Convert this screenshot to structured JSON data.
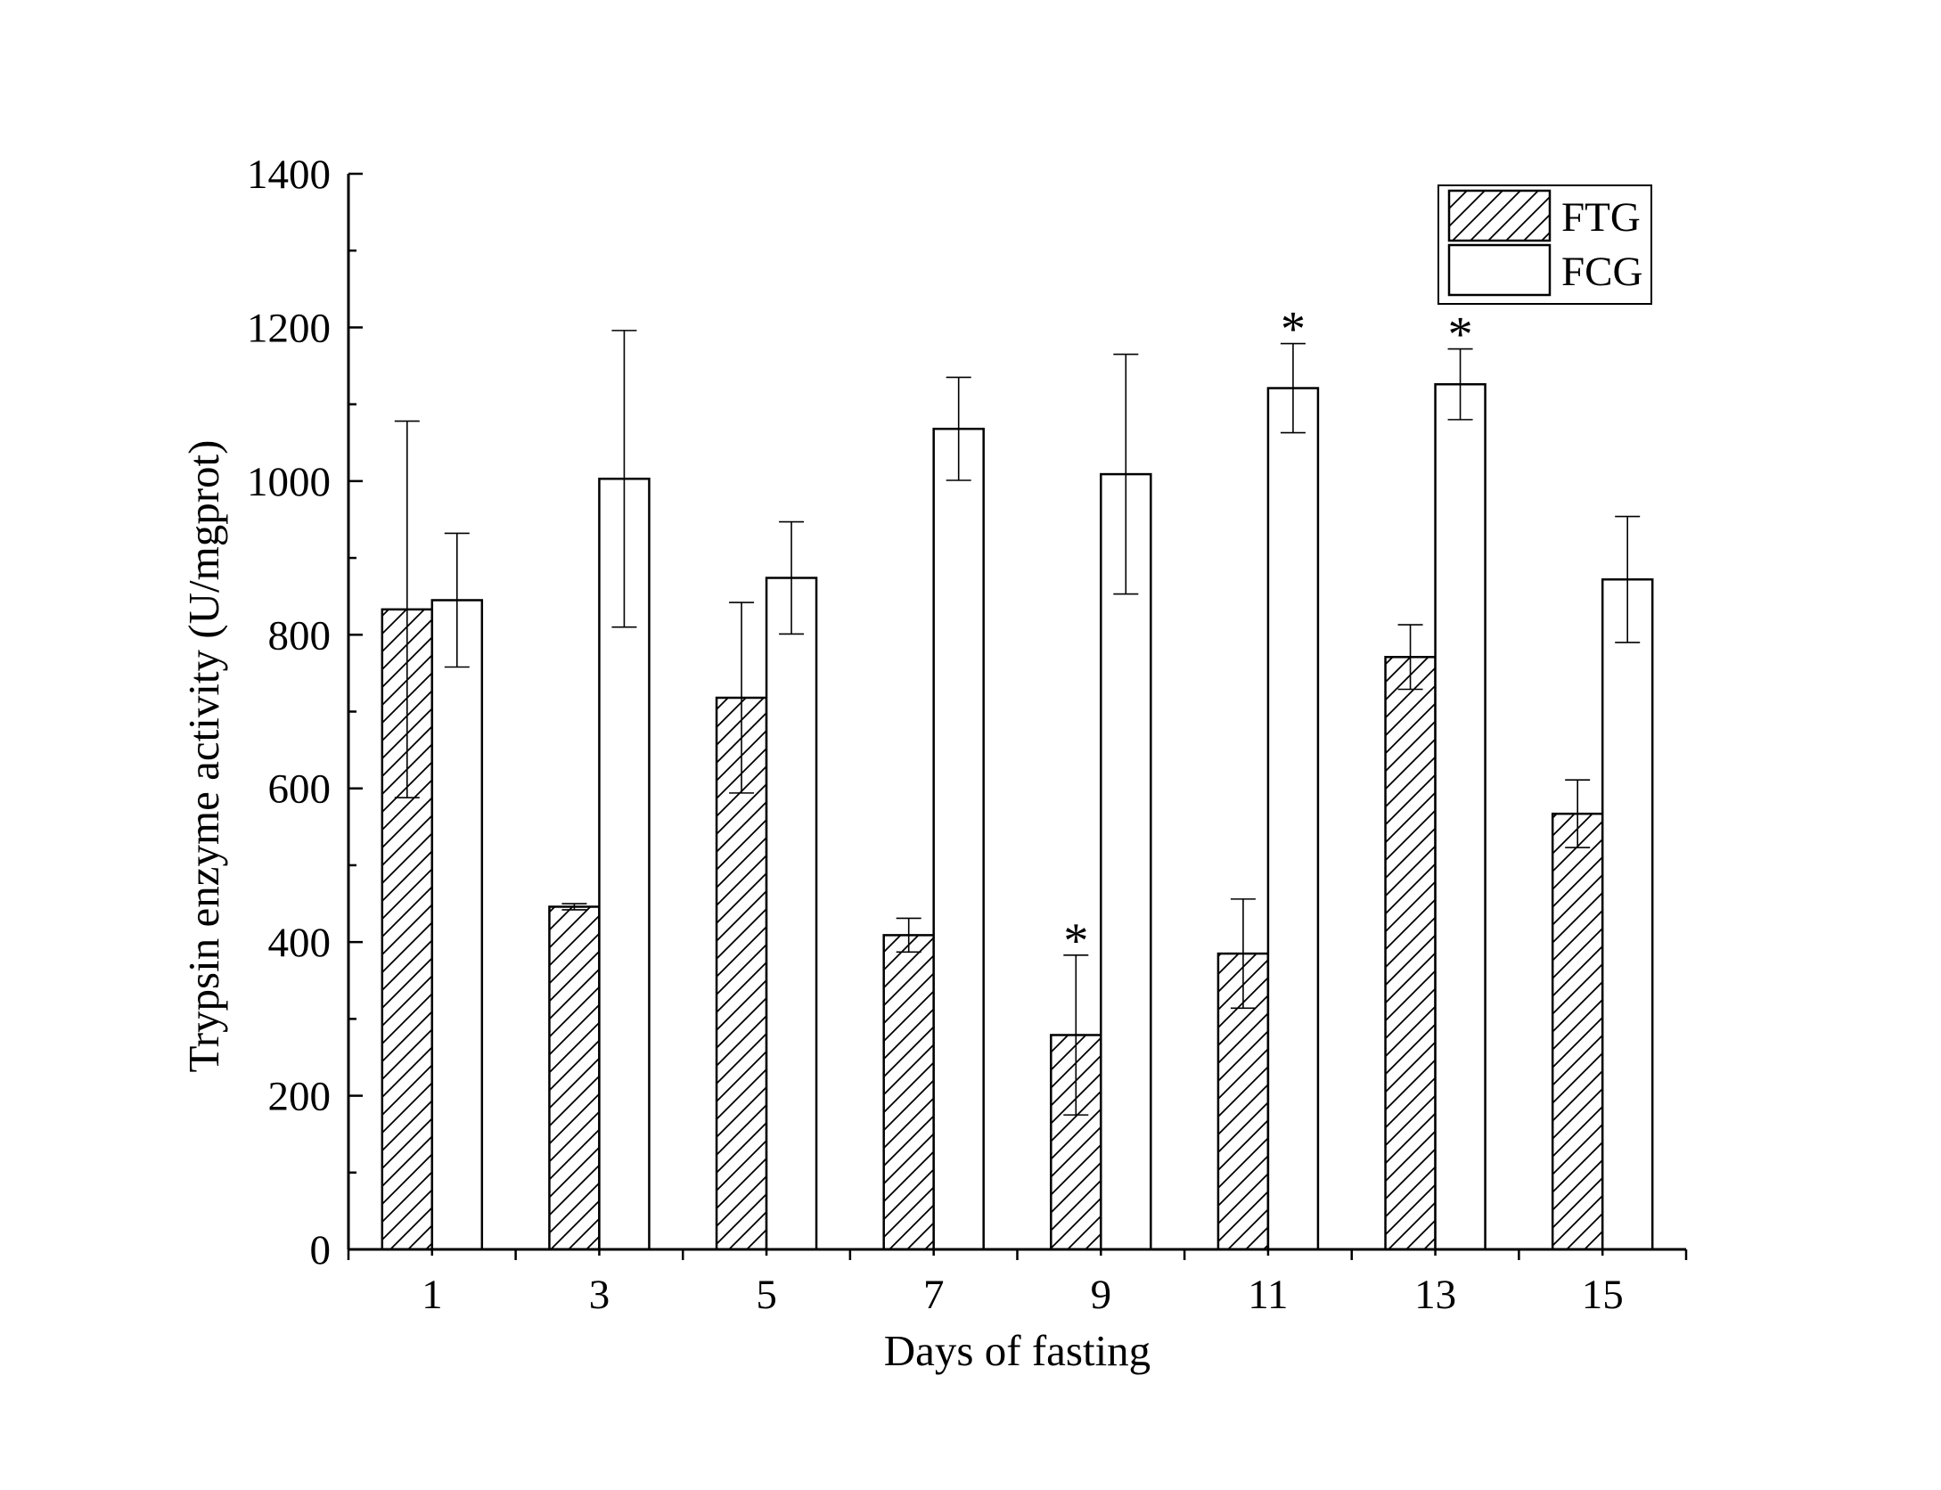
{
  "chart_data": {
    "type": "bar",
    "title": "",
    "xlabel": "Days of fasting",
    "ylabel": "Trypsin enzyme activity (U/mgprot)",
    "categories": [
      "1",
      "3",
      "5",
      "7",
      "9",
      "11",
      "13",
      "15"
    ],
    "ylim": [
      0,
      1400
    ],
    "yticks": [
      "0",
      "200",
      "400",
      "600",
      "800",
      "1000",
      "1200",
      "1400"
    ],
    "legend_position": "top-right",
    "series": [
      {
        "name": "FTG",
        "pattern": "hatched",
        "values": [
          833,
          446,
          718,
          409,
          279,
          385,
          771,
          567
        ],
        "errors": [
          245,
          4,
          124,
          22,
          104,
          71,
          42,
          44
        ],
        "significant": [
          false,
          false,
          false,
          false,
          true,
          false,
          false,
          false
        ]
      },
      {
        "name": "FCG",
        "pattern": "open",
        "values": [
          845,
          1003,
          874,
          1068,
          1009,
          1121,
          1126,
          872
        ],
        "errors": [
          87,
          193,
          73,
          67,
          156,
          58,
          46,
          82
        ],
        "significant": [
          false,
          false,
          false,
          false,
          false,
          true,
          true,
          false
        ]
      }
    ],
    "significance_marker": "*",
    "colors": {
      "stroke": "#000000",
      "background": "#ffffff"
    }
  }
}
